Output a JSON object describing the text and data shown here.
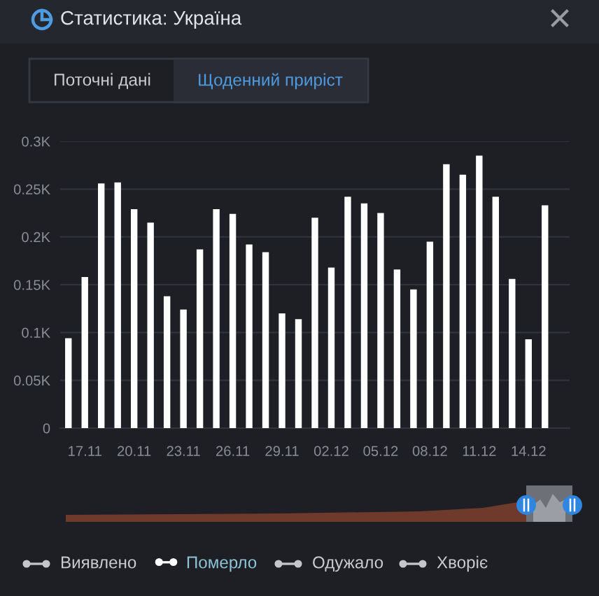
{
  "chart_data": {
    "type": "bar",
    "title": "Статистика: Україна",
    "annotations": [
      "Поточні дані",
      "Щоденний приріст",
      "Виявлено",
      "Одужало",
      "Хворіє"
    ],
    "categories": [
      null,
      "17.11",
      null,
      null,
      "20.11",
      null,
      null,
      "23.11",
      null,
      null,
      "26.11",
      null,
      null,
      "29.11",
      null,
      null,
      "02.12",
      null,
      null,
      "05.12",
      null,
      null,
      "08.12",
      null,
      null,
      "11.12",
      null,
      null,
      "14.12",
      null
    ],
    "series": [
      {
        "name": "Померло",
        "color": "#ffffff",
        "values": [
          0.094,
          0.158,
          0.256,
          0.257,
          0.229,
          0.215,
          0.138,
          0.124,
          0.187,
          0.229,
          0.224,
          0.192,
          0.184,
          0.12,
          0.114,
          0.22,
          0.168,
          0.242,
          0.235,
          0.225,
          0.166,
          0.145,
          0.195,
          0.276,
          0.265,
          0.285,
          0.242,
          0.156,
          0.093,
          0.233
        ]
      }
    ],
    "ylim": [
      0,
      0.3
    ],
    "yticks": [
      0,
      {
        "value": 0.05,
        "label": "0.05K"
      },
      {
        "value": 0.1,
        "label": "0.1K"
      },
      {
        "value": 0.15,
        "label": "0.15K"
      },
      {
        "value": 0.2,
        "label": "0.2K"
      },
      {
        "value": 0.25,
        "label": "0.25K"
      },
      {
        "value": 0.3,
        "label": "0.3K"
      }
    ],
    "grid": "y",
    "legend": "bottom"
  }
}
